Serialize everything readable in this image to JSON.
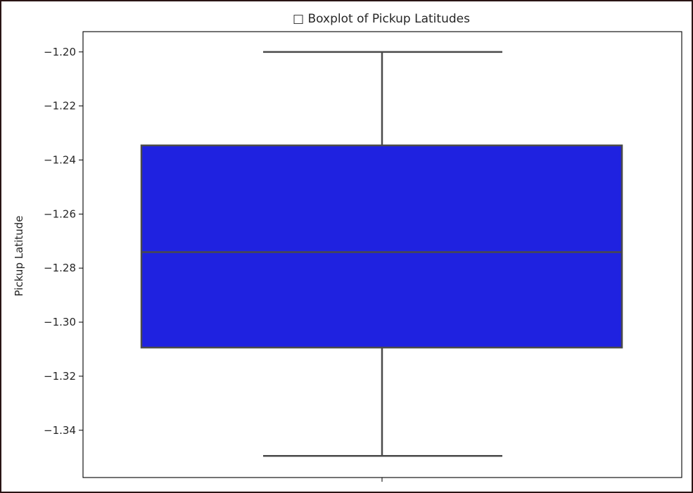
{
  "chart_data": {
    "type": "box",
    "title": "□ Boxplot of Pickup Latitudes",
    "xlabel": "",
    "ylabel": "Pickup Latitude",
    "ylim": [
      -1.3575,
      -1.1925
    ],
    "yticks": [
      -1.34,
      -1.32,
      -1.3,
      -1.28,
      -1.26,
      -1.24,
      -1.22,
      -1.2
    ],
    "ytick_labels": [
      "−1.34",
      "−1.32",
      "−1.30",
      "−1.28",
      "−1.26",
      "−1.24",
      "−1.22",
      "−1.20"
    ],
    "box": {
      "whisker_low": -1.3495,
      "q1": -1.3094,
      "median": -1.2741,
      "q3": -1.2346,
      "whisker_high": -1.2
    },
    "grid": false,
    "colors": {
      "box_fill": "#1f22e0",
      "lines": "#4a4a4a"
    }
  }
}
